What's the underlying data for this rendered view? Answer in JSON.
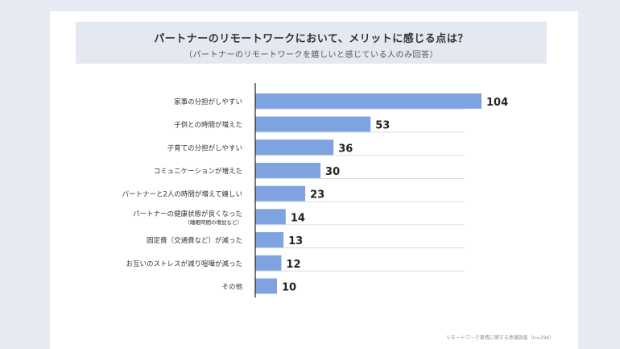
{
  "title": "パートナーのリモートワークにおいて、メリットに感じる点は？",
  "subtitle": "（パートナーのリモートワークを嬉しいと感じている人のみ回答）",
  "source": "リモートワーク事情に関する意識調査（n=294）",
  "colors": {
    "bar": "#7fa3e0",
    "axis": "#222222",
    "grid": "#d9dde6"
  },
  "chart_data": {
    "type": "bar",
    "orientation": "horizontal",
    "categories": [
      "家事の分担がしやすい",
      "子供との時間が増えた",
      "子育ての分担がしやすい",
      "コミュニケーションが増えた",
      "パートナーと2人の時間が増えて嬉しい",
      "パートナーの健康状態が良くなった",
      "固定費（交通費など）が減った",
      "お互いのストレスが減り喧嘩が減った",
      "その他"
    ],
    "category_notes": [
      "",
      "",
      "",
      "",
      "",
      "（睡眠時間の増加など）",
      "",
      "",
      ""
    ],
    "values": [
      104,
      53,
      36,
      30,
      23,
      14,
      13,
      12,
      10
    ],
    "xlim": [
      0,
      110
    ],
    "grid": true
  }
}
